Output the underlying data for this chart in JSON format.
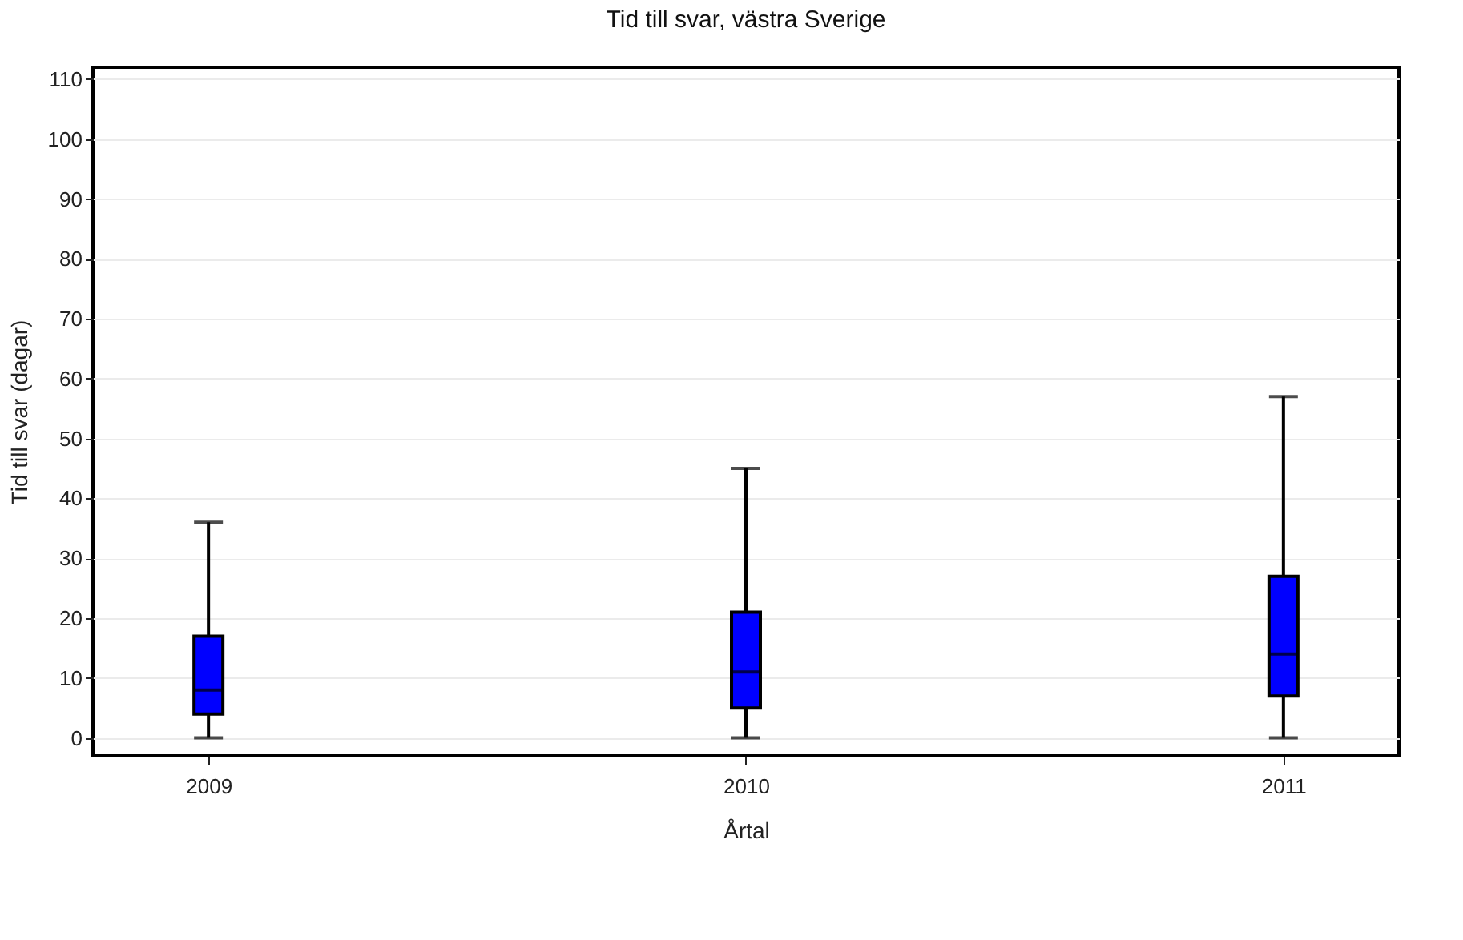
{
  "chart_data": {
    "type": "box",
    "title": "Tid till svar, västra Sverige",
    "xlabel": "Årtal",
    "ylabel": "Tid till svar (dagar)",
    "categories": [
      "2009",
      "2010",
      "2011"
    ],
    "boxes": [
      {
        "low": 0,
        "q1": 4,
        "median": 8,
        "q3": 17,
        "high": 36
      },
      {
        "low": 0,
        "q1": 5,
        "median": 11,
        "q3": 21,
        "high": 45
      },
      {
        "low": 0,
        "q1": 7,
        "median": 14,
        "q3": 27,
        "high": 57
      }
    ],
    "color": "#0000ff",
    "ylim": [
      -3,
      112
    ],
    "yticks": [
      0,
      10,
      20,
      30,
      40,
      50,
      60,
      70,
      80,
      90,
      100,
      110
    ],
    "grid": "y"
  }
}
